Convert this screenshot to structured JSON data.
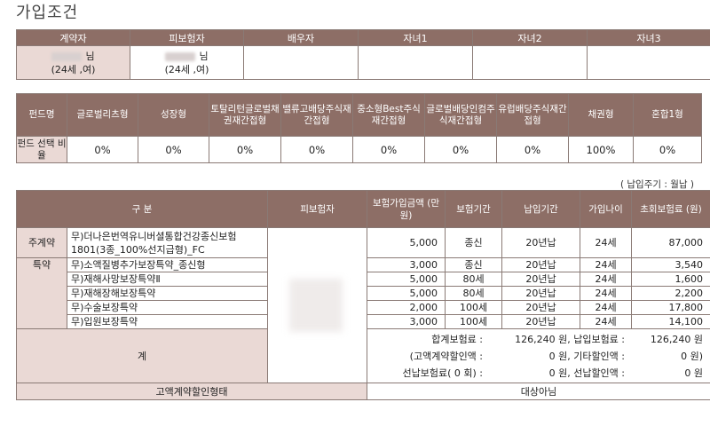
{
  "title": "가입조건",
  "insured_table": {
    "headers": [
      "계약자",
      "피보험자",
      "배우자",
      "자녀1",
      "자녀2",
      "자녀3"
    ],
    "contractor": {
      "name_suffix": "님",
      "age_sex": "(24세 ,여)"
    },
    "insured": {
      "name_suffix": "님",
      "age_sex": "(24세 ,여)"
    }
  },
  "fund_table": {
    "row_header": "펀드명",
    "funds": [
      "글로벌리츠형",
      "성장형",
      "토탈리턴글로벌채권재간접형",
      "밸류고배당주식재간접형",
      "중소형Best주식재간접형",
      "글로벌배당인컴주식재간접형",
      "유럽배당주식재간접형",
      "채권형",
      "혼합1형"
    ],
    "ratio_label": "펀드 선택 비율",
    "ratios": [
      "0%",
      "0%",
      "0%",
      "0%",
      "0%",
      "0%",
      "0%",
      "100%",
      "0%"
    ]
  },
  "note": "( 납입주기 : 월납 )",
  "coverage_table": {
    "headers": {
      "category": "구 분",
      "insured": "피보험자",
      "amount": "보험가입금액 (만원)",
      "period": "보험기간",
      "pay_period": "납입기간",
      "age": "가입나이",
      "premium": "초회보험료 (원)"
    },
    "main_label": "주계약",
    "main": {
      "name": "무)더나은번역유니버셜통합건강종신보험1801(3종_100%선지급형)_FC",
      "amount": "5,000",
      "period": "종신",
      "pay_period": "20년납",
      "age": "24세",
      "premium": "87,000"
    },
    "rider_label": "특약",
    "riders": [
      {
        "name": "무)소액질병추가보장특약_종신형",
        "amount": "3,000",
        "period": "종신",
        "pay_period": "20년납",
        "age": "24세",
        "premium": "3,540"
      },
      {
        "name": "무)재해사망보장특약Ⅱ",
        "amount": "5,000",
        "period": "80세",
        "pay_period": "20년납",
        "age": "24세",
        "premium": "1,600"
      },
      {
        "name": "무)재해장해보장특약",
        "amount": "5,000",
        "period": "80세",
        "pay_period": "20년납",
        "age": "24세",
        "premium": "2,200"
      },
      {
        "name": "무)수술보장특약",
        "amount": "2,000",
        "period": "100세",
        "pay_period": "20년납",
        "age": "24세",
        "premium": "17,800"
      },
      {
        "name": "무)입원보장특약",
        "amount": "3,000",
        "period": "100세",
        "pay_period": "20년납",
        "age": "24세",
        "premium": "14,100"
      }
    ],
    "total_label": "계",
    "totals": {
      "line1_a": "합계보험료 :",
      "line1_b": "126,240 원, 납입보험료 :",
      "line1_c": "126,240 원",
      "line2_a": "(고액계약할인액 :",
      "line2_b": "0 원, 기타할인액 :",
      "line2_c": "0 원)",
      "line3_a": "선납보험료(  0 회) :",
      "line3_b": "0 원, 선납할인액 :",
      "line3_c": "0 원"
    },
    "discount_label": "고액계약할인형태",
    "discount_value": "대상아님"
  }
}
